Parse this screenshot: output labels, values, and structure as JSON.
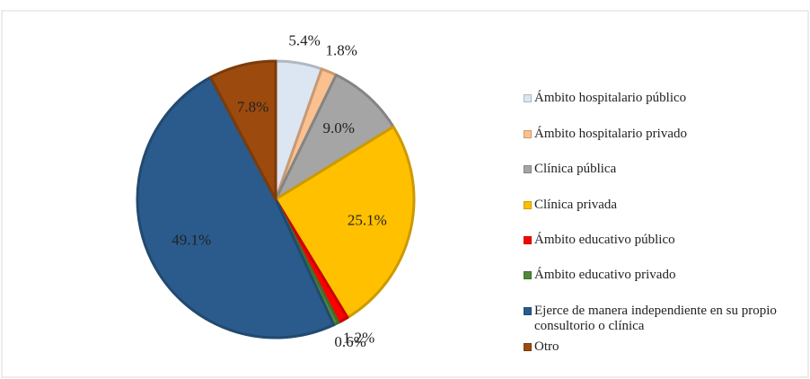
{
  "chart_data": {
    "type": "pie",
    "categories": [
      "Ámbito hospitalario público",
      "Ámbito hospitalario privado",
      "Clínica pública",
      "Clínica privada",
      "Ámbito educativo público",
      "Ámbito educativo privado",
      "Ejerce de manera independiente en su propio consultorio o clínica",
      "Otro"
    ],
    "values": [
      5.4,
      1.8,
      9.0,
      25.1,
      1.2,
      0.6,
      49.1,
      7.8
    ],
    "value_labels": [
      "5.4%",
      "1.8%",
      "9.0%",
      "25.1%",
      "1.2%",
      "0.6%",
      "49.1%",
      "7.8%"
    ],
    "colors": [
      "#dce6f2",
      "#fac090",
      "#a5a5a5",
      "#ffc000",
      "#ff0000",
      "#4f8a3a",
      "#2a5b8c",
      "#9c4a0e"
    ],
    "legend": "right"
  }
}
